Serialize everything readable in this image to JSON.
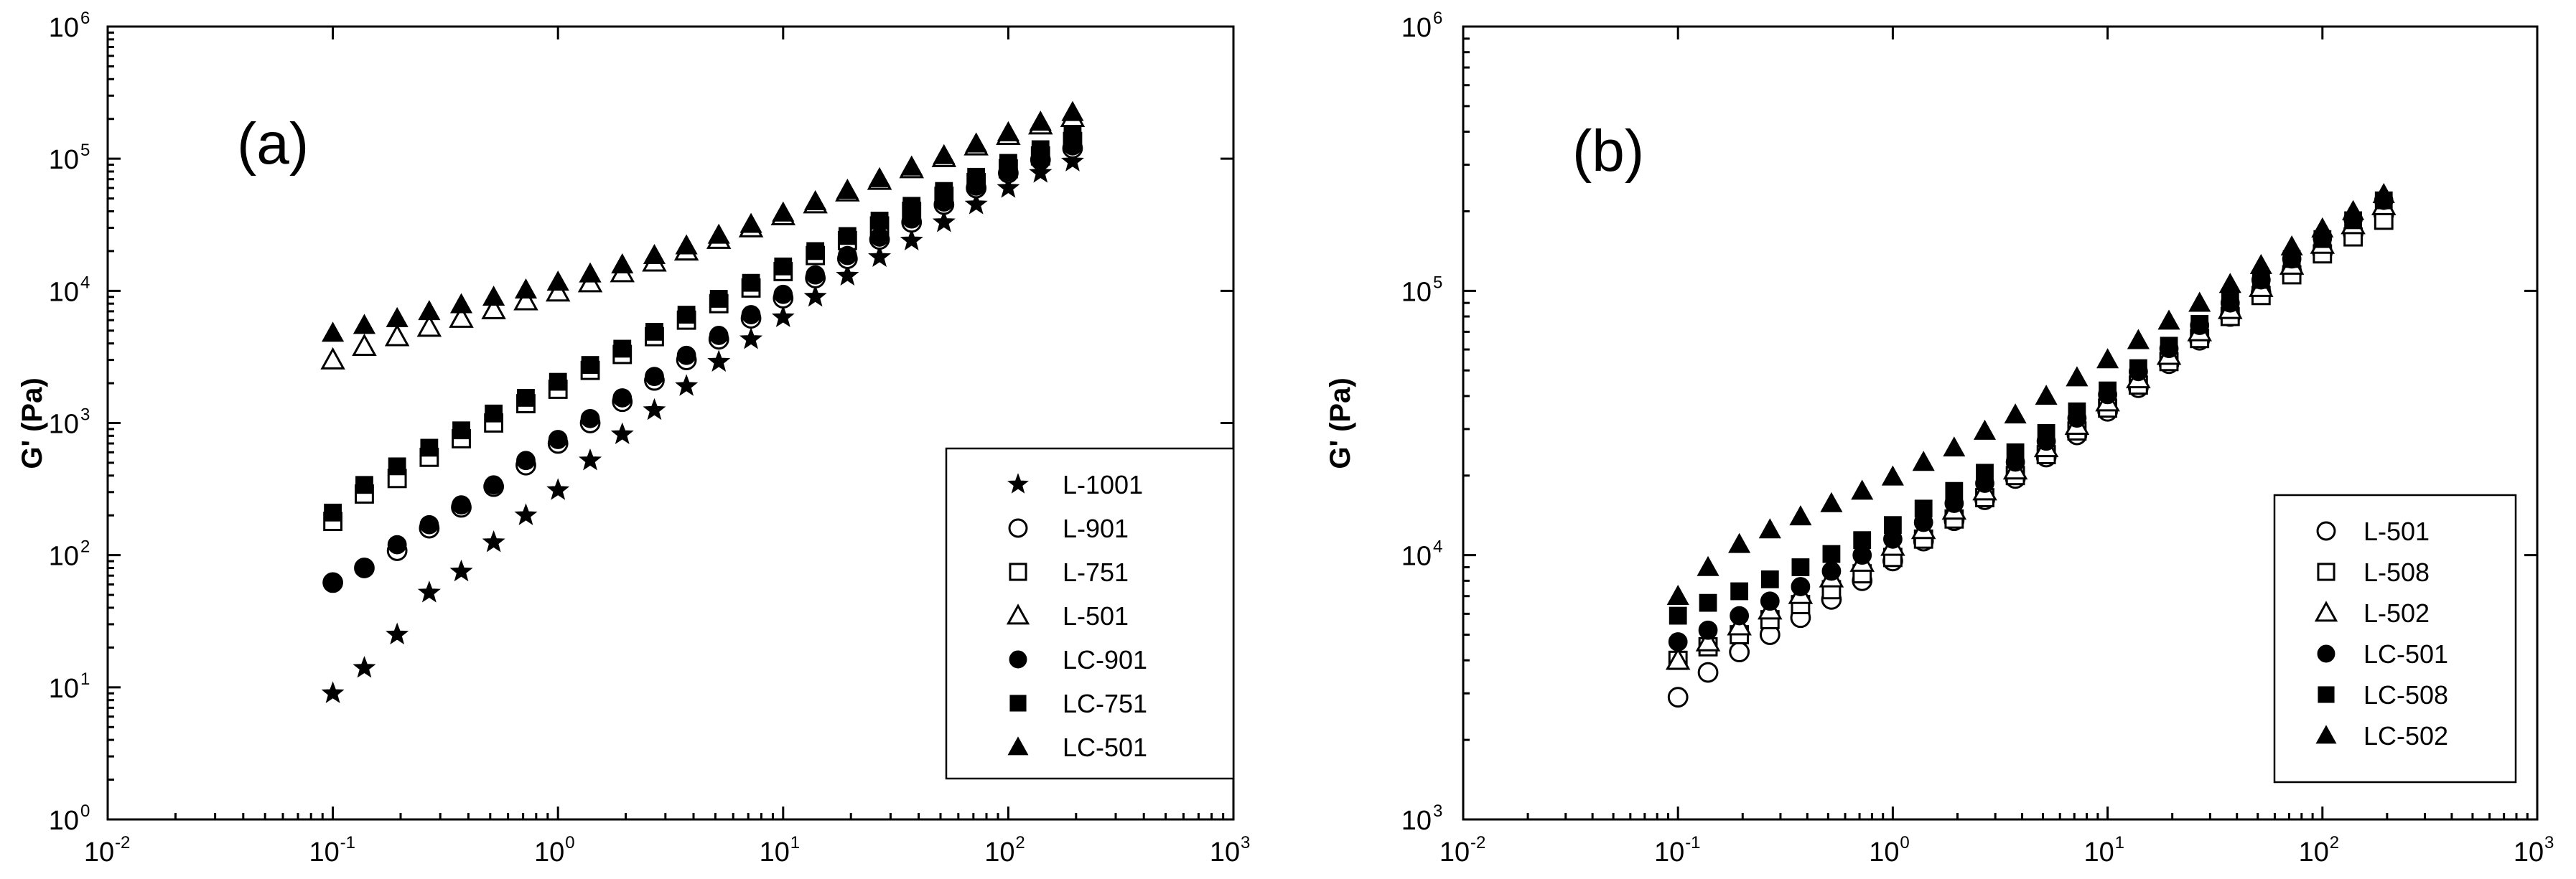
{
  "chart_data": [
    {
      "type": "scatter",
      "panel_label": "(a)",
      "ylabel": "G' (Pa)",
      "xlabel": "",
      "x_scale": "log",
      "y_scale": "log",
      "xlim": [
        0.01,
        1000
      ],
      "ylim": [
        1,
        1000000
      ],
      "x_ticks": [
        {
          "base": "10",
          "exp": "-2"
        },
        {
          "base": "10",
          "exp": "-1"
        },
        {
          "base": "10",
          "exp": "0"
        },
        {
          "base": "10",
          "exp": "1"
        },
        {
          "base": "10",
          "exp": "2"
        },
        {
          "base": "10",
          "exp": "3"
        }
      ],
      "y_ticks": [
        {
          "base": "10",
          "exp": "0"
        },
        {
          "base": "10",
          "exp": "1"
        },
        {
          "base": "10",
          "exp": "2"
        },
        {
          "base": "10",
          "exp": "3"
        },
        {
          "base": "10",
          "exp": "4"
        },
        {
          "base": "10",
          "exp": "5"
        },
        {
          "base": "10",
          "exp": "6"
        }
      ],
      "legend_position": "lower-right",
      "series": [
        {
          "name": "L-1001",
          "marker": "star",
          "filled": true,
          "x": [
            0.1,
            0.138,
            0.193,
            0.268,
            0.372,
            0.518,
            0.72,
            1,
            1.39,
            1.93,
            2.68,
            3.72,
            5.18,
            7.2,
            10,
            13.9,
            19.3,
            26.8,
            37.2,
            51.8,
            72,
            100,
            139,
            193
          ],
          "y": [
            9,
            14,
            25,
            52,
            75,
            125,
            200,
            310,
            520,
            820,
            1250,
            1900,
            2900,
            4300,
            6300,
            9000,
            13000,
            18000,
            24000,
            33000,
            45000,
            60000,
            78000,
            95000
          ]
        },
        {
          "name": "L-901",
          "marker": "circle",
          "filled": false,
          "x": [
            0.1,
            0.138,
            0.193,
            0.268,
            0.372,
            0.518,
            0.72,
            1,
            1.39,
            1.93,
            2.68,
            3.72,
            5.18,
            7.2,
            10,
            13.9,
            19.3,
            26.8,
            37.2,
            51.8,
            72,
            100,
            139,
            193
          ],
          "y": [
            62,
            80,
            108,
            160,
            230,
            330,
            480,
            700,
            1000,
            1450,
            2100,
            3000,
            4300,
            6200,
            8800,
            12500,
            17500,
            24500,
            33000,
            45000,
            60000,
            78000,
            98000,
            120000
          ]
        },
        {
          "name": "L-751",
          "marker": "square",
          "filled": false,
          "x": [
            0.1,
            0.138,
            0.193,
            0.268,
            0.372,
            0.518,
            0.72,
            1,
            1.39,
            1.93,
            2.68,
            3.72,
            5.18,
            7.2,
            10,
            13.9,
            19.3,
            26.8,
            37.2,
            51.8,
            72,
            100,
            139,
            193
          ],
          "y": [
            180,
            290,
            380,
            550,
            760,
            1000,
            1400,
            1800,
            2500,
            3300,
            4500,
            6000,
            8000,
            10500,
            14000,
            18500,
            24000,
            31000,
            40000,
            52000,
            66000,
            84000,
            105000,
            135000
          ]
        },
        {
          "name": "L-501",
          "marker": "triangle",
          "filled": false,
          "x": [
            0.1,
            0.138,
            0.193,
            0.268,
            0.372,
            0.518,
            0.72,
            1,
            1.39,
            1.93,
            2.68,
            3.72,
            5.18,
            7.2,
            10,
            13.9,
            19.3,
            26.8,
            37.2,
            51.8,
            72,
            100,
            139,
            193
          ],
          "y": [
            3000,
            3800,
            4500,
            5300,
            6200,
            7200,
            8400,
            9800,
            11500,
            13700,
            16500,
            20000,
            24500,
            30000,
            37000,
            45500,
            56000,
            68500,
            84000,
            102000,
            125000,
            150000,
            180000,
            205000
          ]
        },
        {
          "name": "LC-901",
          "marker": "circle",
          "filled": true,
          "x": [
            0.1,
            0.138,
            0.193,
            0.268,
            0.372,
            0.518,
            0.72,
            1,
            1.39,
            1.93,
            2.68,
            3.72,
            5.18,
            7.2,
            10,
            13.9,
            19.3,
            26.8,
            37.2,
            51.8,
            72,
            100,
            139,
            193
          ],
          "y": [
            62,
            80,
            120,
            170,
            240,
            340,
            520,
            750,
            1080,
            1550,
            2250,
            3250,
            4600,
            6600,
            9400,
            13200,
            18500,
            25500,
            35000,
            47000,
            62000,
            80000,
            100000,
            125000
          ]
        },
        {
          "name": "LC-751",
          "marker": "square",
          "filled": true,
          "x": [
            0.1,
            0.138,
            0.193,
            0.268,
            0.372,
            0.518,
            0.72,
            1,
            1.39,
            1.93,
            2.68,
            3.72,
            5.18,
            7.2,
            10,
            13.9,
            19.3,
            26.8,
            37.2,
            51.8,
            72,
            100,
            139,
            193
          ],
          "y": [
            210,
            340,
            470,
            650,
            880,
            1180,
            1550,
            2050,
            2750,
            3650,
            4900,
            6600,
            8700,
            11500,
            15300,
            20000,
            26000,
            34000,
            44000,
            57000,
            73000,
            93000,
            118000,
            150000
          ]
        },
        {
          "name": "LC-501",
          "marker": "triangle",
          "filled": true,
          "x": [
            0.1,
            0.138,
            0.193,
            0.268,
            0.372,
            0.518,
            0.72,
            1,
            1.39,
            1.93,
            2.68,
            3.72,
            5.18,
            7.2,
            10,
            13.9,
            19.3,
            26.8,
            37.2,
            51.8,
            72,
            100,
            139,
            193
          ],
          "y": [
            4800,
            5500,
            6200,
            7000,
            7900,
            9000,
            10200,
            11700,
            13500,
            15800,
            18600,
            22000,
            26500,
            32000,
            39000,
            47500,
            58000,
            71000,
            87000,
            106000,
            130000,
            158000,
            190000,
            225000
          ]
        }
      ]
    },
    {
      "type": "scatter",
      "panel_label": "(b)",
      "ylabel": "G' (Pa)",
      "xlabel": "",
      "x_scale": "log",
      "y_scale": "log",
      "xlim": [
        0.01,
        1000
      ],
      "ylim": [
        1000,
        1000000
      ],
      "x_ticks": [
        {
          "base": "10",
          "exp": "-2"
        },
        {
          "base": "10",
          "exp": "-1"
        },
        {
          "base": "10",
          "exp": "0"
        },
        {
          "base": "10",
          "exp": "1"
        },
        {
          "base": "10",
          "exp": "2"
        },
        {
          "base": "10",
          "exp": "3"
        }
      ],
      "y_ticks": [
        {
          "base": "10",
          "exp": "3"
        },
        {
          "base": "10",
          "exp": "4"
        },
        {
          "base": "10",
          "exp": "5"
        },
        {
          "base": "10",
          "exp": "6"
        }
      ],
      "legend_position": "lower-right",
      "series": [
        {
          "name": "L-501",
          "marker": "circle",
          "filled": false,
          "x": [
            0.1,
            0.138,
            0.193,
            0.268,
            0.372,
            0.518,
            0.72,
            1,
            1.39,
            1.93,
            2.68,
            3.72,
            5.18,
            7.2,
            10,
            13.9,
            19.3,
            26.8,
            37.2,
            51.8,
            72,
            100,
            139,
            193
          ],
          "y": [
            2900,
            3600,
            4300,
            5000,
            5800,
            6800,
            8000,
            9500,
            11300,
            13500,
            16200,
            19500,
            23500,
            28500,
            35000,
            43000,
            53000,
            65000,
            80000,
            98000,
            118000,
            140000,
            165000,
            195000
          ]
        },
        {
          "name": "L-508",
          "marker": "square",
          "filled": false,
          "x": [
            0.1,
            0.138,
            0.193,
            0.268,
            0.372,
            0.518,
            0.72,
            1,
            1.39,
            1.93,
            2.68,
            3.72,
            5.18,
            7.2,
            10,
            13.9,
            19.3,
            26.8,
            37.2,
            51.8,
            72,
            100,
            139,
            193
          ],
          "y": [
            4000,
            4500,
            5000,
            5700,
            6500,
            7400,
            8500,
            9800,
            11500,
            13700,
            16500,
            20000,
            24000,
            29500,
            36000,
            44000,
            54000,
            66000,
            80000,
            96000,
            115000,
            138000,
            160000,
            185000
          ]
        },
        {
          "name": "L-502",
          "marker": "triangle",
          "filled": false,
          "x": [
            0.1,
            0.138,
            0.193,
            0.268,
            0.372,
            0.518,
            0.72,
            1,
            1.39,
            1.93,
            2.68,
            3.72,
            5.18,
            7.2,
            10,
            13.9,
            19.3,
            26.8,
            37.2,
            51.8,
            72,
            100,
            139,
            193
          ],
          "y": [
            4000,
            4700,
            5400,
            6200,
            7100,
            8200,
            9400,
            10800,
            12500,
            14800,
            17500,
            21000,
            25500,
            31000,
            38000,
            46500,
            57000,
            70000,
            85000,
            103000,
            125000,
            150000,
            178000,
            210000
          ]
        },
        {
          "name": "LC-501",
          "marker": "circle",
          "filled": true,
          "x": [
            0.1,
            0.138,
            0.193,
            0.268,
            0.372,
            0.518,
            0.72,
            1,
            1.39,
            1.93,
            2.68,
            3.72,
            5.18,
            7.2,
            10,
            13.9,
            19.3,
            26.8,
            37.2,
            51.8,
            72,
            100,
            139,
            193
          ],
          "y": [
            4700,
            5200,
            5900,
            6700,
            7600,
            8700,
            10000,
            11500,
            13300,
            15700,
            18700,
            22500,
            27000,
            33000,
            40500,
            49500,
            60500,
            74000,
            90000,
            110000,
            132000,
            158000,
            187000,
            220000
          ]
        },
        {
          "name": "LC-508",
          "marker": "square",
          "filled": true,
          "x": [
            0.1,
            0.138,
            0.193,
            0.268,
            0.372,
            0.518,
            0.72,
            1,
            1.39,
            1.93,
            2.68,
            3.72,
            5.18,
            7.2,
            10,
            13.9,
            19.3,
            26.8,
            37.2,
            51.8,
            72,
            100,
            139,
            193
          ],
          "y": [
            5900,
            6600,
            7300,
            8100,
            9000,
            10100,
            11400,
            13000,
            15000,
            17500,
            20500,
            24500,
            29000,
            35000,
            42000,
            51000,
            62000,
            75000,
            91000,
            110000,
            132000,
            157000,
            185000,
            220000
          ]
        },
        {
          "name": "LC-502",
          "marker": "triangle",
          "filled": true,
          "x": [
            0.1,
            0.138,
            0.193,
            0.268,
            0.372,
            0.518,
            0.72,
            1,
            1.39,
            1.93,
            2.68,
            3.72,
            5.18,
            7.2,
            10,
            13.9,
            19.3,
            26.8,
            37.2,
            51.8,
            72,
            100,
            139,
            193
          ],
          "y": [
            7000,
            9000,
            11000,
            12500,
            14000,
            15700,
            17500,
            19800,
            22500,
            25500,
            29500,
            34000,
            40000,
            47000,
            55000,
            65000,
            77000,
            90000,
            106000,
            125000,
            147000,
            172000,
            200000,
            232000
          ]
        }
      ]
    }
  ]
}
